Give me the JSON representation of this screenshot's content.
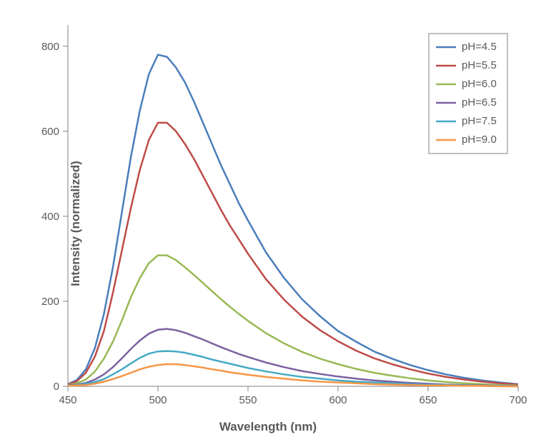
{
  "chart": {
    "type": "line",
    "xlabel": "Wavelength (nm)",
    "ylabel": "Intensity (normalized)",
    "label_fontsize": 17,
    "tick_fontsize": 15,
    "background_color": "#ffffff",
    "axis_color": "#808080",
    "text_color": "#595959",
    "line_width": 2.5,
    "xlim": [
      450,
      700
    ],
    "ylim": [
      0,
      850
    ],
    "grid": false,
    "xticks": [
      450,
      500,
      550,
      600,
      650,
      700
    ],
    "yticks": [
      0,
      200,
      400,
      600,
      800
    ],
    "legend": {
      "position": "top-right",
      "border_color": "#808080",
      "items": [
        {
          "label": "pH=4.5",
          "color": "#4a7ebb"
        },
        {
          "label": "pH=5.5",
          "color": "#be4b48"
        },
        {
          "label": "pH=6.0",
          "color": "#98b954"
        },
        {
          "label": "pH=6.5",
          "color": "#7d60a0"
        },
        {
          "label": "pH=7.5",
          "color": "#46aac5"
        },
        {
          "label": "pH=9.0",
          "color": "#f79646"
        }
      ]
    },
    "series": [
      {
        "name": "pH=4.5",
        "color": "#4a7ebb",
        "x": [
          450,
          455,
          460,
          465,
          470,
          475,
          480,
          485,
          490,
          495,
          500,
          505,
          510,
          515,
          520,
          525,
          530,
          535,
          540,
          545,
          550,
          560,
          570,
          580,
          590,
          600,
          610,
          620,
          630,
          640,
          650,
          660,
          670,
          680,
          690,
          700
        ],
        "y": [
          5,
          15,
          40,
          90,
          170,
          280,
          410,
          540,
          650,
          735,
          780,
          775,
          750,
          715,
          670,
          620,
          570,
          520,
          475,
          430,
          390,
          315,
          255,
          205,
          165,
          130,
          105,
          82,
          65,
          50,
          38,
          28,
          20,
          14,
          9,
          5
        ]
      },
      {
        "name": "pH=5.5",
        "color": "#be4b48",
        "x": [
          450,
          455,
          460,
          465,
          470,
          475,
          480,
          485,
          490,
          495,
          500,
          505,
          510,
          515,
          520,
          525,
          530,
          535,
          540,
          545,
          550,
          560,
          570,
          580,
          590,
          600,
          610,
          620,
          630,
          640,
          650,
          660,
          670,
          680,
          690,
          700
        ],
        "y": [
          4,
          12,
          32,
          70,
          130,
          220,
          320,
          420,
          510,
          580,
          620,
          620,
          600,
          570,
          535,
          495,
          455,
          415,
          378,
          345,
          312,
          252,
          204,
          164,
          132,
          106,
          84,
          66,
          52,
          40,
          30,
          22,
          16,
          11,
          7,
          4
        ]
      },
      {
        "name": "pH=6.0",
        "color": "#98b954",
        "x": [
          450,
          455,
          460,
          465,
          470,
          475,
          480,
          485,
          490,
          495,
          500,
          505,
          510,
          515,
          520,
          525,
          530,
          535,
          540,
          545,
          550,
          560,
          570,
          580,
          590,
          600,
          610,
          620,
          630,
          640,
          650,
          660,
          670,
          680,
          690,
          700
        ],
        "y": [
          3,
          7,
          16,
          35,
          65,
          105,
          155,
          210,
          255,
          290,
          308,
          308,
          297,
          280,
          262,
          243,
          224,
          205,
          187,
          170,
          154,
          125,
          101,
          81,
          65,
          52,
          41,
          32,
          25,
          19,
          14,
          10,
          7,
          5,
          3,
          2
        ]
      },
      {
        "name": "pH=6.5",
        "color": "#7d60a0",
        "x": [
          450,
          455,
          460,
          465,
          470,
          475,
          480,
          485,
          490,
          495,
          500,
          505,
          510,
          515,
          520,
          525,
          530,
          535,
          540,
          545,
          550,
          560,
          570,
          580,
          590,
          600,
          610,
          620,
          630,
          640,
          650,
          660,
          670,
          680,
          690,
          700
        ],
        "y": [
          2,
          4,
          8,
          16,
          28,
          45,
          66,
          88,
          108,
          124,
          133,
          135,
          132,
          126,
          118,
          110,
          101,
          92,
          84,
          76,
          69,
          56,
          45,
          36,
          29,
          23,
          18,
          14,
          11,
          8,
          6,
          4,
          3,
          2,
          1,
          1
        ]
      },
      {
        "name": "pH=7.5",
        "color": "#46aac5",
        "x": [
          450,
          455,
          460,
          465,
          470,
          475,
          480,
          485,
          490,
          495,
          500,
          505,
          510,
          515,
          520,
          525,
          530,
          535,
          540,
          545,
          550,
          560,
          570,
          580,
          590,
          600,
          610,
          620,
          630,
          640,
          650,
          660,
          670,
          680,
          690,
          700
        ],
        "y": [
          1,
          3,
          6,
          10,
          17,
          28,
          40,
          54,
          67,
          77,
          82,
          83,
          82,
          79,
          74,
          69,
          63,
          58,
          53,
          48,
          43,
          35,
          28,
          22,
          18,
          14,
          11,
          9,
          7,
          5,
          4,
          3,
          2,
          1,
          1,
          0
        ]
      },
      {
        "name": "pH=9.0",
        "color": "#f79646",
        "x": [
          450,
          455,
          460,
          465,
          470,
          475,
          480,
          485,
          490,
          495,
          500,
          505,
          510,
          515,
          520,
          525,
          530,
          535,
          540,
          545,
          550,
          560,
          570,
          580,
          590,
          600,
          610,
          620,
          630,
          640,
          650,
          660,
          670,
          680,
          690,
          700
        ],
        "y": [
          1,
          2,
          3,
          6,
          11,
          17,
          24,
          32,
          40,
          46,
          50,
          52,
          52,
          50,
          47,
          44,
          40,
          37,
          33,
          30,
          27,
          22,
          18,
          14,
          11,
          9,
          7,
          5,
          4,
          3,
          2,
          2,
          1,
          1,
          0,
          0
        ]
      }
    ]
  }
}
